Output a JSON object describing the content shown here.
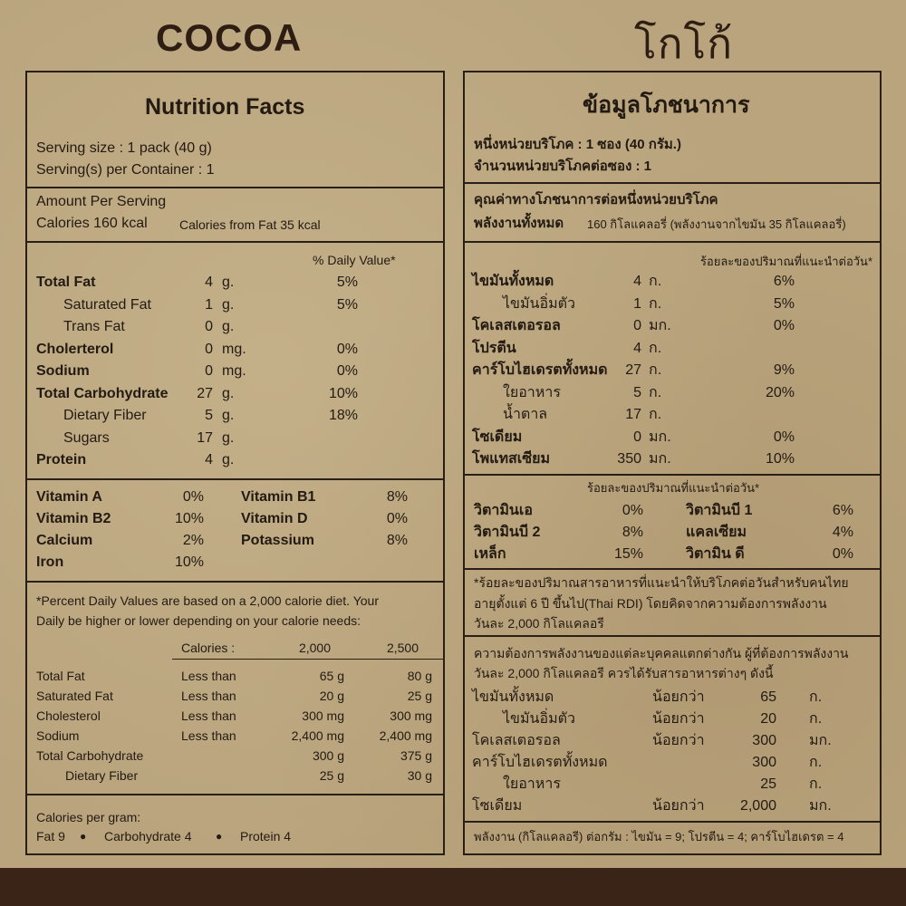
{
  "brand": {
    "en": "COCOA",
    "th": "โกโก้"
  },
  "left": {
    "title": "Nutrition Facts",
    "serving_size": "Serving size : 1 pack (40 g)",
    "servings": "Serving(s) per Container : 1",
    "amount_per_serving": "Amount Per Serving",
    "calories": "Calories 160 kcal",
    "calories_fat": "Calories from Fat 35 kcal",
    "dv_header": "% Daily Value*",
    "nutrients": [
      {
        "name": "Total Fat",
        "amount": "4",
        "unit": "g.",
        "pct": "5%",
        "bold": true
      },
      {
        "name": "Saturated Fat",
        "amount": "1",
        "unit": "g.",
        "pct": "5%",
        "indent": true
      },
      {
        "name": "Trans Fat",
        "amount": "0",
        "unit": "g.",
        "pct": "",
        "indent": true
      },
      {
        "name": "Cholerterol",
        "amount": "0",
        "unit": "mg.",
        "pct": "0%",
        "bold": true
      },
      {
        "name": "Sodium",
        "amount": "0",
        "unit": "mg.",
        "pct": "0%",
        "bold": true
      },
      {
        "name": "Total Carbohydrate",
        "amount": "27",
        "unit": "g.",
        "pct": "10%",
        "bold": true
      },
      {
        "name": "Dietary Fiber",
        "amount": "5",
        "unit": "g.",
        "pct": "18%",
        "indent": true
      },
      {
        "name": "Sugars",
        "amount": "17",
        "unit": "g.",
        "pct": "",
        "indent": true
      },
      {
        "name": "Protein",
        "amount": "4",
        "unit": "g.",
        "pct": "",
        "bold": true
      }
    ],
    "vitamins": [
      {
        "name": "Vitamin A",
        "pct": "0%",
        "name2": "Vitamin B1",
        "pct2": "8%"
      },
      {
        "name": "Vitamin B2",
        "pct": "10%",
        "name2": "Vitamin D",
        "pct2": "0%"
      },
      {
        "name": "Calcium",
        "pct": "2%",
        "name2": "Potassium",
        "pct2": "8%"
      },
      {
        "name": "Iron",
        "pct": "10%",
        "name2": "",
        "pct2": ""
      }
    ],
    "footnote": [
      "*Percent Daily Values are based on a 2,000 calorie diet. Your",
      "Daily be higher or lower depending on your calorie needs:"
    ],
    "ref_header": {
      "label": "Calories :",
      "c1": "2,000",
      "c2": "2,500"
    },
    "ref_rows": [
      {
        "name": "Total Fat",
        "q": "Less than",
        "v1": "65 g",
        "v2": "80 g"
      },
      {
        "name": "Saturated Fat",
        "q": "Less than",
        "v1": "20 g",
        "v2": "25 g"
      },
      {
        "name": "Cholesterol",
        "q": "Less than",
        "v1": "300 mg",
        "v2": "300 mg"
      },
      {
        "name": "Sodium",
        "q": "Less than",
        "v1": "2,400 mg",
        "v2": "2,400 mg"
      },
      {
        "name": "Total Carbohydrate",
        "q": "",
        "v1": "300 g",
        "v2": "375 g"
      },
      {
        "name": "Dietary Fiber",
        "q": "",
        "v1": "25 g",
        "v2": "30 g",
        "indent": true
      }
    ],
    "cal_per_gram": "Calories per gram:",
    "cal_fat": "Fat 9",
    "cal_carb": "Carbohydrate 4",
    "cal_protein": "Protein 4"
  },
  "right": {
    "title": "ข้อมูลโภชนาการ",
    "serving_size": "หนึ่งหน่วยบริโภค : 1 ซอง (40 กรัม.)",
    "servings": "จำนวนหน่วยบริโภคต่อซอง : 1",
    "per_serving": "คุณค่าทางโภชนาการต่อหนึ่งหน่วยบริโภค",
    "energy_label": "พลังงานทั้งหมด",
    "energy_value": "160 กิโลแคลอรี่ (พลังงานจากไขมัน 35 กิโลแคลอรี่)",
    "dv_header": "ร้อยละของปริมาณที่แนะนำต่อวัน*",
    "nutrients": [
      {
        "name": "ไขมันทั้งหมด",
        "amount": "4",
        "unit": "ก.",
        "pct": "6%",
        "bold": true
      },
      {
        "name": "ไขมันอิ่มตัว",
        "amount": "1",
        "unit": "ก.",
        "pct": "5%",
        "indent": true
      },
      {
        "name": "โคเลสเตอรอล",
        "amount": "0",
        "unit": "มก.",
        "pct": "0%",
        "bold": true
      },
      {
        "name": "โปรตีน",
        "amount": "4",
        "unit": "ก.",
        "pct": "",
        "bold": true
      },
      {
        "name": "คาร์โบไฮเดรตทั้งหมด",
        "amount": "27",
        "unit": "ก.",
        "pct": "9%",
        "bold": true
      },
      {
        "name": "ใยอาหาร",
        "amount": "5",
        "unit": "ก.",
        "pct": "20%",
        "indent": true
      },
      {
        "name": "น้ำตาล",
        "amount": "17",
        "unit": "ก.",
        "pct": "",
        "indent": true
      },
      {
        "name": "โซเดียม",
        "amount": "0",
        "unit": "มก.",
        "pct": "0%",
        "bold": true
      },
      {
        "name": "โพแทสเซียม",
        "amount": "350",
        "unit": "มก.",
        "pct": "10%",
        "bold": true
      }
    ],
    "vit_header": "ร้อยละของปริมาณที่แนะนำต่อวัน*",
    "vitamins": [
      {
        "name": "วิตามินเอ",
        "pct": "0%",
        "name2": "วิตามินบี 1",
        "pct2": "6%"
      },
      {
        "name": "วิตามินบี 2",
        "pct": "8%",
        "name2": "แคลเซียม",
        "pct2": "4%"
      },
      {
        "name": "เหล็ก",
        "pct": "15%",
        "name2": "วิตามิน ดี",
        "pct2": "0%"
      }
    ],
    "footnote": [
      "*ร้อยละของปริมาณสารอาหารที่แนะนำให้บริโภคต่อวันสำหรับคนไทย",
      "อายุตั้งแต่ 6 ปี ขึ้นไป(Thai RDI) โดยคิดจากความต้องการพลังงาน",
      "วันละ 2,000 กิโลแคลอรี"
    ],
    "req_text": [
      "ความต้องการพลังงานของแต่ละบุคคลแตกต่างกัน ผู้ที่ต้องการพลังงาน",
      "วันละ 2,000 กิโลแคลอรี ควรได้รับสารอาหารต่างๆ ดังนี้"
    ],
    "req_rows": [
      {
        "name": "ไขมันทั้งหมด",
        "q": "น้อยกว่า",
        "v": "65",
        "unit": "ก."
      },
      {
        "name": "ไขมันอิ่มตัว",
        "q": "น้อยกว่า",
        "v": "20",
        "unit": "ก.",
        "indent": true
      },
      {
        "name": "โคเลสเตอรอล",
        "q": "น้อยกว่า",
        "v": "300",
        "unit": "มก."
      },
      {
        "name": "คาร์โบไฮเดรตทั้งหมด",
        "q": "",
        "v": "300",
        "unit": "ก."
      },
      {
        "name": "ใยอาหาร",
        "q": "",
        "v": "25",
        "unit": "ก.",
        "indent": true
      },
      {
        "name": "โซเดียม",
        "q": "น้อยกว่า",
        "v": "2,000",
        "unit": "มก."
      }
    ],
    "energy_per_gram": "พลังงาน (กิโลแคลอรี) ต่อกรัม : ไขมัน = 9; โปรตีน = 4; คาร์โบไฮเดรต = 4"
  },
  "colors": {
    "paper": "#b9a47d",
    "ink": "#231a12",
    "band": "#3a2317"
  }
}
